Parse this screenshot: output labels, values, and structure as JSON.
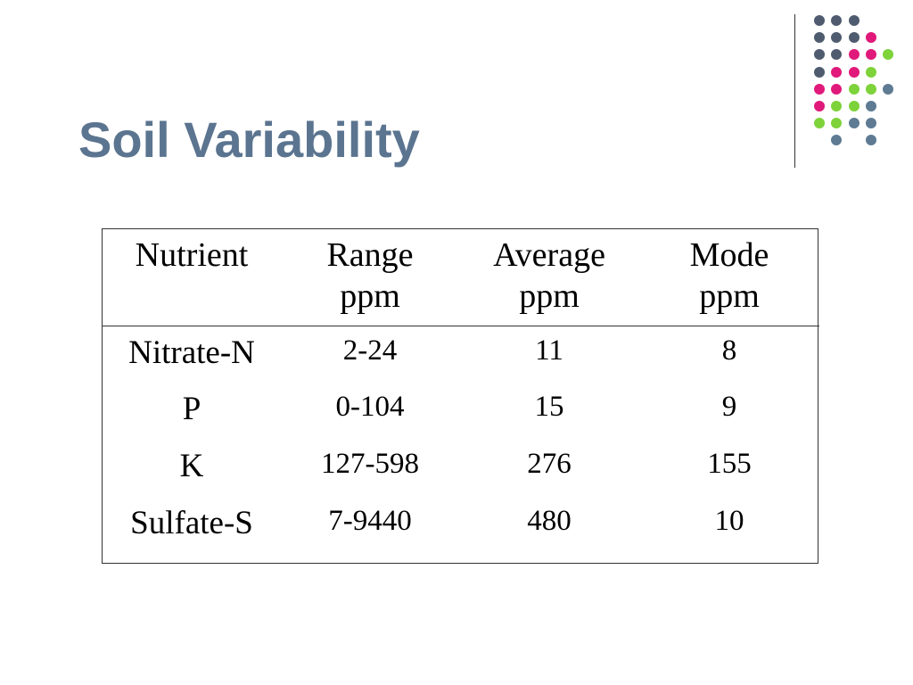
{
  "slide": {
    "title": "Soil Variability"
  },
  "decoration": {
    "colors": {
      "slate": "#4F5B6E",
      "pink": "#E0197A",
      "green": "#7ED23A",
      "steel": "#5E7B93",
      "title": "#5B7490"
    },
    "dot_grid": [
      [
        "",
        "slate",
        "slate",
        "slate",
        ""
      ],
      [
        "",
        "slate",
        "slate",
        "slate",
        "pink"
      ],
      [
        "",
        "slate",
        "slate",
        "pink",
        "pink",
        "green"
      ],
      [
        "",
        "slate",
        "pink",
        "pink",
        "green"
      ],
      [
        "",
        "pink",
        "pink",
        "green",
        "green",
        "steel"
      ],
      [
        "",
        "pink",
        "green",
        "green",
        "steel"
      ],
      [
        "",
        "green",
        "green",
        "steel",
        "steel"
      ],
      [
        "",
        "",
        "steel",
        "",
        "steel"
      ]
    ]
  },
  "table": {
    "headers": [
      [
        "Nutrient"
      ],
      [
        "Range",
        "ppm"
      ],
      [
        "Average",
        "ppm"
      ],
      [
        "Mode",
        "ppm"
      ]
    ],
    "rows": [
      {
        "nutrient": "Nitrate-N",
        "range": "2-24",
        "average": "11",
        "mode": "8"
      },
      {
        "nutrient": "P",
        "range": "0-104",
        "average": "15",
        "mode": "9"
      },
      {
        "nutrient": "K",
        "range": "127-598",
        "average": "276",
        "mode": "155"
      },
      {
        "nutrient": "Sulfate-S",
        "range": "7-9440",
        "average": "480",
        "mode": "10"
      }
    ]
  }
}
